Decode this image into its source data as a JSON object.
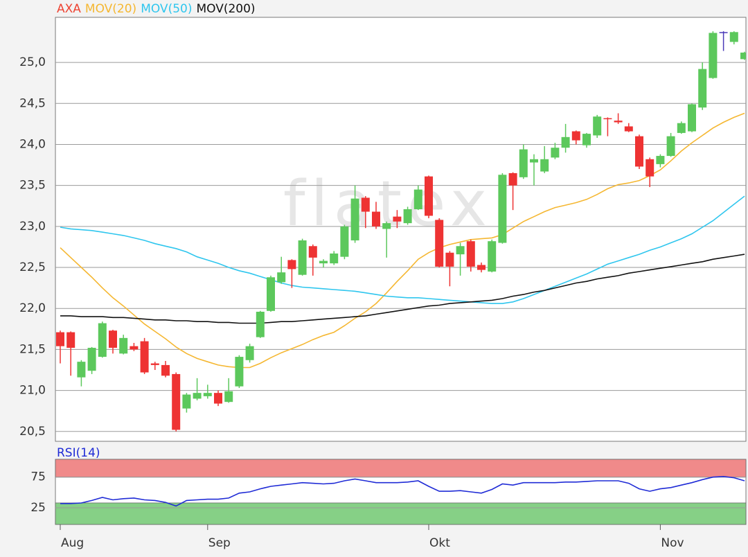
{
  "chart_data": [
    {
      "type": "candlestick",
      "name": "AXA",
      "watermark": "flatex",
      "up_color": "#5cc85c",
      "down_color": "#ee3333",
      "doji_color": "#4a3ab8",
      "legend_color": "#ee4433",
      "open": [
        21.71,
        21.71,
        21.16,
        21.24,
        21.41,
        21.73,
        21.45,
        21.54,
        21.6,
        21.33,
        21.31,
        21.2,
        20.78,
        20.9,
        20.93,
        20.97,
        20.86,
        21.05,
        21.37,
        21.65,
        21.97,
        22.32,
        22.59,
        22.41,
        22.76,
        22.55,
        22.55,
        22.63,
        22.83,
        23.35,
        23.18,
        22.97,
        23.12,
        23.04,
        23.21,
        23.61,
        23.08,
        22.68,
        22.66,
        22.82,
        22.53,
        22.45,
        22.8,
        23.65,
        23.6,
        23.78,
        23.67,
        23.84,
        23.96,
        24.16,
        23.99,
        24.11,
        24.32,
        24.29,
        24.22,
        24.1,
        23.82,
        23.76,
        23.86,
        24.14,
        24.16,
        24.45,
        24.81,
        25.37,
        25.25,
        25.04
      ],
      "high": [
        21.73,
        21.72,
        21.37,
        21.53,
        21.84,
        21.74,
        21.68,
        21.58,
        21.64,
        21.35,
        21.36,
        21.22,
        20.97,
        21.15,
        21.07,
        21.0,
        21.15,
        21.43,
        21.57,
        21.97,
        22.4,
        22.63,
        22.6,
        22.85,
        22.78,
        22.6,
        22.7,
        23.02,
        23.5,
        23.37,
        23.3,
        23.06,
        23.2,
        23.24,
        23.5,
        23.62,
        23.1,
        22.7,
        22.8,
        22.84,
        22.56,
        22.84,
        23.65,
        23.66,
        24.0,
        23.88,
        23.98,
        24.02,
        24.25,
        24.17,
        24.14,
        24.36,
        24.33,
        24.38,
        24.26,
        24.12,
        23.84,
        23.88,
        24.14,
        24.28,
        24.5,
        25.0,
        25.38,
        25.38,
        25.38,
        25.13
      ],
      "low": [
        21.33,
        21.18,
        21.05,
        21.2,
        21.4,
        21.45,
        21.44,
        21.48,
        21.2,
        21.25,
        21.16,
        20.5,
        20.73,
        20.88,
        20.9,
        20.81,
        20.85,
        21.03,
        21.34,
        21.64,
        21.96,
        22.3,
        22.25,
        22.4,
        22.4,
        22.5,
        22.53,
        22.6,
        22.8,
        22.98,
        22.97,
        22.62,
        22.98,
        23.02,
        23.2,
        23.1,
        22.5,
        22.27,
        22.4,
        22.45,
        22.44,
        22.44,
        22.79,
        23.2,
        23.58,
        23.5,
        23.65,
        23.82,
        23.9,
        24.0,
        23.96,
        24.08,
        24.1,
        24.25,
        24.15,
        23.7,
        23.48,
        23.72,
        23.85,
        24.13,
        24.15,
        24.42,
        24.8,
        25.14,
        25.22,
        25.03
      ],
      "close": [
        21.54,
        21.52,
        21.35,
        21.52,
        21.82,
        21.52,
        21.64,
        21.5,
        21.22,
        21.31,
        21.18,
        20.52,
        20.95,
        20.97,
        20.97,
        20.84,
        20.99,
        21.41,
        21.54,
        21.96,
        22.38,
        22.44,
        22.48,
        22.83,
        22.62,
        22.58,
        22.67,
        23.0,
        23.34,
        23.18,
        23.0,
        23.04,
        23.06,
        23.21,
        23.45,
        23.13,
        22.51,
        22.51,
        22.76,
        22.51,
        22.47,
        22.82,
        23.63,
        23.5,
        23.94,
        23.82,
        23.82,
        23.96,
        24.09,
        24.05,
        24.13,
        24.34,
        24.31,
        24.27,
        24.16,
        23.73,
        23.61,
        23.86,
        24.1,
        24.26,
        24.49,
        24.92,
        25.36,
        25.37,
        25.37,
        25.12
      ],
      "series": [
        {
          "name": "MOV(20)",
          "color": "#f5b731",
          "values": [
            22.74,
            22.62,
            22.5,
            22.38,
            22.25,
            22.13,
            22.03,
            21.92,
            21.81,
            21.72,
            21.63,
            21.53,
            21.45,
            21.39,
            21.35,
            21.31,
            21.29,
            21.28,
            21.28,
            21.33,
            21.4,
            21.46,
            21.51,
            21.56,
            21.62,
            21.67,
            21.71,
            21.79,
            21.88,
            21.96,
            22.06,
            22.19,
            22.33,
            22.46,
            22.6,
            22.68,
            22.74,
            22.78,
            22.81,
            22.84,
            22.85,
            22.86,
            22.9,
            22.98,
            23.06,
            23.12,
            23.18,
            23.23,
            23.26,
            23.29,
            23.33,
            23.39,
            23.46,
            23.51,
            23.53,
            23.56,
            23.62,
            23.69,
            23.8,
            23.92,
            24.02,
            24.11,
            24.2,
            24.27,
            24.33,
            24.38
          ]
        },
        {
          "name": "MOV(50)",
          "color": "#2fc6ee",
          "values": [
            22.99,
            22.97,
            22.96,
            22.95,
            22.93,
            22.91,
            22.89,
            22.86,
            22.83,
            22.79,
            22.76,
            22.73,
            22.69,
            22.63,
            22.59,
            22.55,
            22.5,
            22.46,
            22.43,
            22.39,
            22.35,
            22.31,
            22.28,
            22.26,
            22.25,
            22.24,
            22.23,
            22.22,
            22.21,
            22.19,
            22.17,
            22.15,
            22.14,
            22.13,
            22.13,
            22.12,
            22.11,
            22.1,
            22.09,
            22.08,
            22.07,
            22.06,
            22.06,
            22.08,
            22.12,
            22.17,
            22.22,
            22.27,
            22.32,
            22.37,
            22.42,
            22.48,
            22.54,
            22.58,
            22.62,
            22.66,
            22.71,
            22.75,
            22.8,
            22.85,
            22.91,
            22.99,
            23.07,
            23.17,
            23.27,
            23.37
          ]
        },
        {
          "name": "MOV(200)",
          "color": "#111111",
          "values": [
            21.91,
            21.91,
            21.9,
            21.9,
            21.9,
            21.89,
            21.89,
            21.88,
            21.87,
            21.86,
            21.86,
            21.85,
            21.85,
            21.84,
            21.84,
            21.83,
            21.83,
            21.82,
            21.82,
            21.82,
            21.83,
            21.84,
            21.84,
            21.85,
            21.86,
            21.87,
            21.88,
            21.89,
            21.9,
            21.91,
            21.93,
            21.95,
            21.97,
            21.99,
            22.01,
            22.03,
            22.04,
            22.06,
            22.07,
            22.08,
            22.09,
            22.1,
            22.12,
            22.15,
            22.17,
            22.2,
            22.22,
            22.25,
            22.28,
            22.31,
            22.33,
            22.36,
            22.38,
            22.4,
            22.43,
            22.45,
            22.47,
            22.49,
            22.51,
            22.53,
            22.55,
            22.57,
            22.6,
            22.62,
            22.64,
            22.66
          ]
        }
      ],
      "ylim": [
        20.38,
        25.55
      ],
      "yticks": [
        {
          "value": 20.5,
          "label": "20,5"
        },
        {
          "value": 21,
          "label": "21,0"
        },
        {
          "value": 21.5,
          "label": "21,5"
        },
        {
          "value": 22,
          "label": "22,0"
        },
        {
          "value": 22.5,
          "label": "22,5"
        },
        {
          "value": 23,
          "label": "23,0"
        },
        {
          "value": 23.5,
          "label": "23,5"
        },
        {
          "value": 24,
          "label": "24,0"
        },
        {
          "value": 24.5,
          "label": "24,5"
        },
        {
          "value": 25,
          "label": "25,0"
        }
      ],
      "grid": true
    },
    {
      "type": "line",
      "categories": [
        "Aug",
        null,
        null,
        null,
        null,
        null,
        null,
        null,
        null,
        null,
        null,
        null,
        null,
        null,
        "Sep",
        null,
        null,
        null,
        null,
        null,
        null,
        null,
        null,
        null,
        null,
        null,
        null,
        null,
        null,
        null,
        null,
        null,
        null,
        null,
        null,
        "Okt",
        null,
        null,
        null,
        null,
        null,
        null,
        null,
        null,
        null,
        null,
        null,
        null,
        null,
        null,
        null,
        null,
        null,
        null,
        null,
        null,
        null,
        "Nov",
        null,
        null,
        null,
        null,
        null,
        null,
        null,
        null
      ],
      "series": [
        {
          "name": "RSI(14)",
          "color": "#1f2bd6",
          "values": [
            32,
            32,
            33,
            37,
            42,
            38,
            40,
            41,
            38,
            37,
            34,
            28,
            37,
            38,
            39,
            39,
            41,
            49,
            51,
            56,
            60,
            62,
            64,
            66,
            65,
            64,
            65,
            69,
            72,
            69,
            66,
            66,
            66,
            67,
            69,
            60,
            52,
            52,
            53,
            51,
            49,
            55,
            64,
            62,
            66,
            66,
            66,
            66,
            67,
            67,
            68,
            69,
            69,
            69,
            65,
            56,
            52,
            56,
            58,
            62,
            66,
            71,
            75,
            76,
            74,
            69
          ]
        }
      ],
      "zones": [
        {
          "from": 75,
          "to": 104,
          "color": "#f08a8a"
        },
        {
          "from": -2,
          "to": 33,
          "color": "#86d086"
        }
      ],
      "ylim": [
        -2,
        104
      ],
      "yticks": [
        25,
        75
      ],
      "grid": true
    }
  ]
}
